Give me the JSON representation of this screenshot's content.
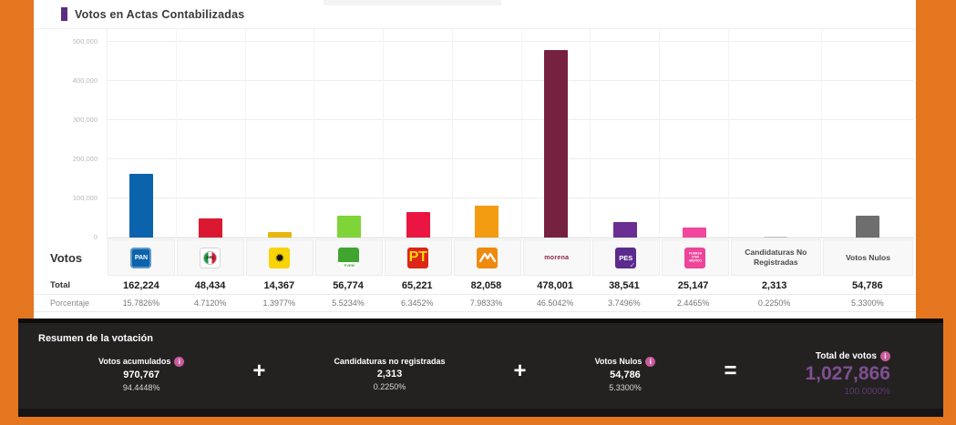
{
  "header": {
    "title": "Votos en Actas Contabilizadas",
    "accent_color": "#5b2d82"
  },
  "chart_data": {
    "type": "bar",
    "title": "Votos en Actas Contabilizadas",
    "categories": [
      "PAN",
      "PRI",
      "PRD",
      "PVEM",
      "PT",
      "Movimiento Ciudadano",
      "MORENA",
      "PES",
      "Fuerza por México",
      "Candidaturas No Registradas",
      "Votos Nulos"
    ],
    "values": [
      162224,
      48434,
      14367,
      56774,
      65221,
      82058,
      478001,
      38541,
      25147,
      2313,
      54786
    ],
    "colors": [
      "#0b63ad",
      "#da1930",
      "#e7b80c",
      "#7fd437",
      "#ea1641",
      "#f39c12",
      "#76213f",
      "#6b2e93",
      "#f0489c",
      "#c9c9c9",
      "#6e6e6e"
    ],
    "xlabel": "",
    "ylabel": "",
    "ylim": [
      0,
      500000
    ],
    "ytick_labels": [
      "0",
      "100,000",
      "200,000",
      "300,000",
      "400,000",
      "500,000"
    ],
    "grid": true,
    "legend": "none"
  },
  "table": {
    "row_labels": {
      "votos": "Votos",
      "total": "Total",
      "porcentaje": "Porcentaje"
    },
    "columns": [
      {
        "id": "pan",
        "logo": {
          "kind": "pan",
          "text": "PAN",
          "bg": "#0b63ad",
          "fg": "#ffffff"
        },
        "total": "162,224",
        "pct": "15.7826%"
      },
      {
        "id": "pri",
        "logo": {
          "kind": "pri",
          "text": "PRI"
        },
        "total": "48,434",
        "pct": "4.7120%"
      },
      {
        "id": "prd",
        "logo": {
          "kind": "prd",
          "glyph": "✹",
          "bg": "#f7d308",
          "fg": "#111111"
        },
        "total": "14,367",
        "pct": "1.3977%"
      },
      {
        "id": "pvem",
        "logo": {
          "kind": "pvem",
          "text": "PVEM",
          "bg": "#3fa52f",
          "fg": "#3fa52f"
        },
        "total": "56,774",
        "pct": "5.5234%"
      },
      {
        "id": "pt",
        "logo": {
          "kind": "chip",
          "text": "PT",
          "bg": "#dd2518",
          "fg": "#f8d80a"
        },
        "total": "65,221",
        "pct": "6.3452%"
      },
      {
        "id": "mc",
        "logo": {
          "kind": "mc",
          "bg": "#ef8a10"
        },
        "total": "82,058",
        "pct": "7.9833%"
      },
      {
        "id": "morena",
        "logo": {
          "kind": "morena",
          "text": "morena"
        },
        "total": "478,001",
        "pct": "46.5042%"
      },
      {
        "id": "pes",
        "logo": {
          "kind": "pes",
          "text": "PES",
          "bg": "#5b2b8e",
          "fg": "#ffffff"
        },
        "total": "38,541",
        "pct": "3.7496%"
      },
      {
        "id": "fxm",
        "logo": {
          "kind": "fxm",
          "text": "FUERZA POR MÉXICO",
          "bg": "#ee4499",
          "fg": "#ffffff"
        },
        "total": "25,147",
        "pct": "2.4465%"
      },
      {
        "id": "cnr",
        "logo": {
          "kind": "label",
          "text": "Candidaturas No Registradas"
        },
        "wide": true,
        "total": "2,313",
        "pct": "0.2250%"
      },
      {
        "id": "nulos",
        "logo": {
          "kind": "label",
          "text": "Votos Nulos"
        },
        "wide": true,
        "total": "54,786",
        "pct": "5.3300%"
      }
    ]
  },
  "summary": {
    "title": "Resumen de la votación",
    "items": [
      {
        "id": "votos-acumulados",
        "label": "Votos acumulados",
        "info": true,
        "value": "970,767",
        "pct": "94.4448%"
      },
      {
        "op": "+"
      },
      {
        "id": "candidaturas-no-registradas",
        "label": "Candidaturas no registradas",
        "info": false,
        "value": "2,313",
        "pct": "0.2250%"
      },
      {
        "op": "+"
      },
      {
        "id": "votos-nulos",
        "label": "Votos Nulos",
        "info": true,
        "value": "54,786",
        "pct": "5.3300%"
      },
      {
        "op": "="
      },
      {
        "id": "total-de-votos",
        "label": "Total de votos",
        "info": true,
        "value": "1,027,866",
        "pct": "100.0000%",
        "highlight": true
      }
    ],
    "info_icon_glyph": "i",
    "info_icon_color": "#c85b9b",
    "total_color": "#7e4f91"
  }
}
